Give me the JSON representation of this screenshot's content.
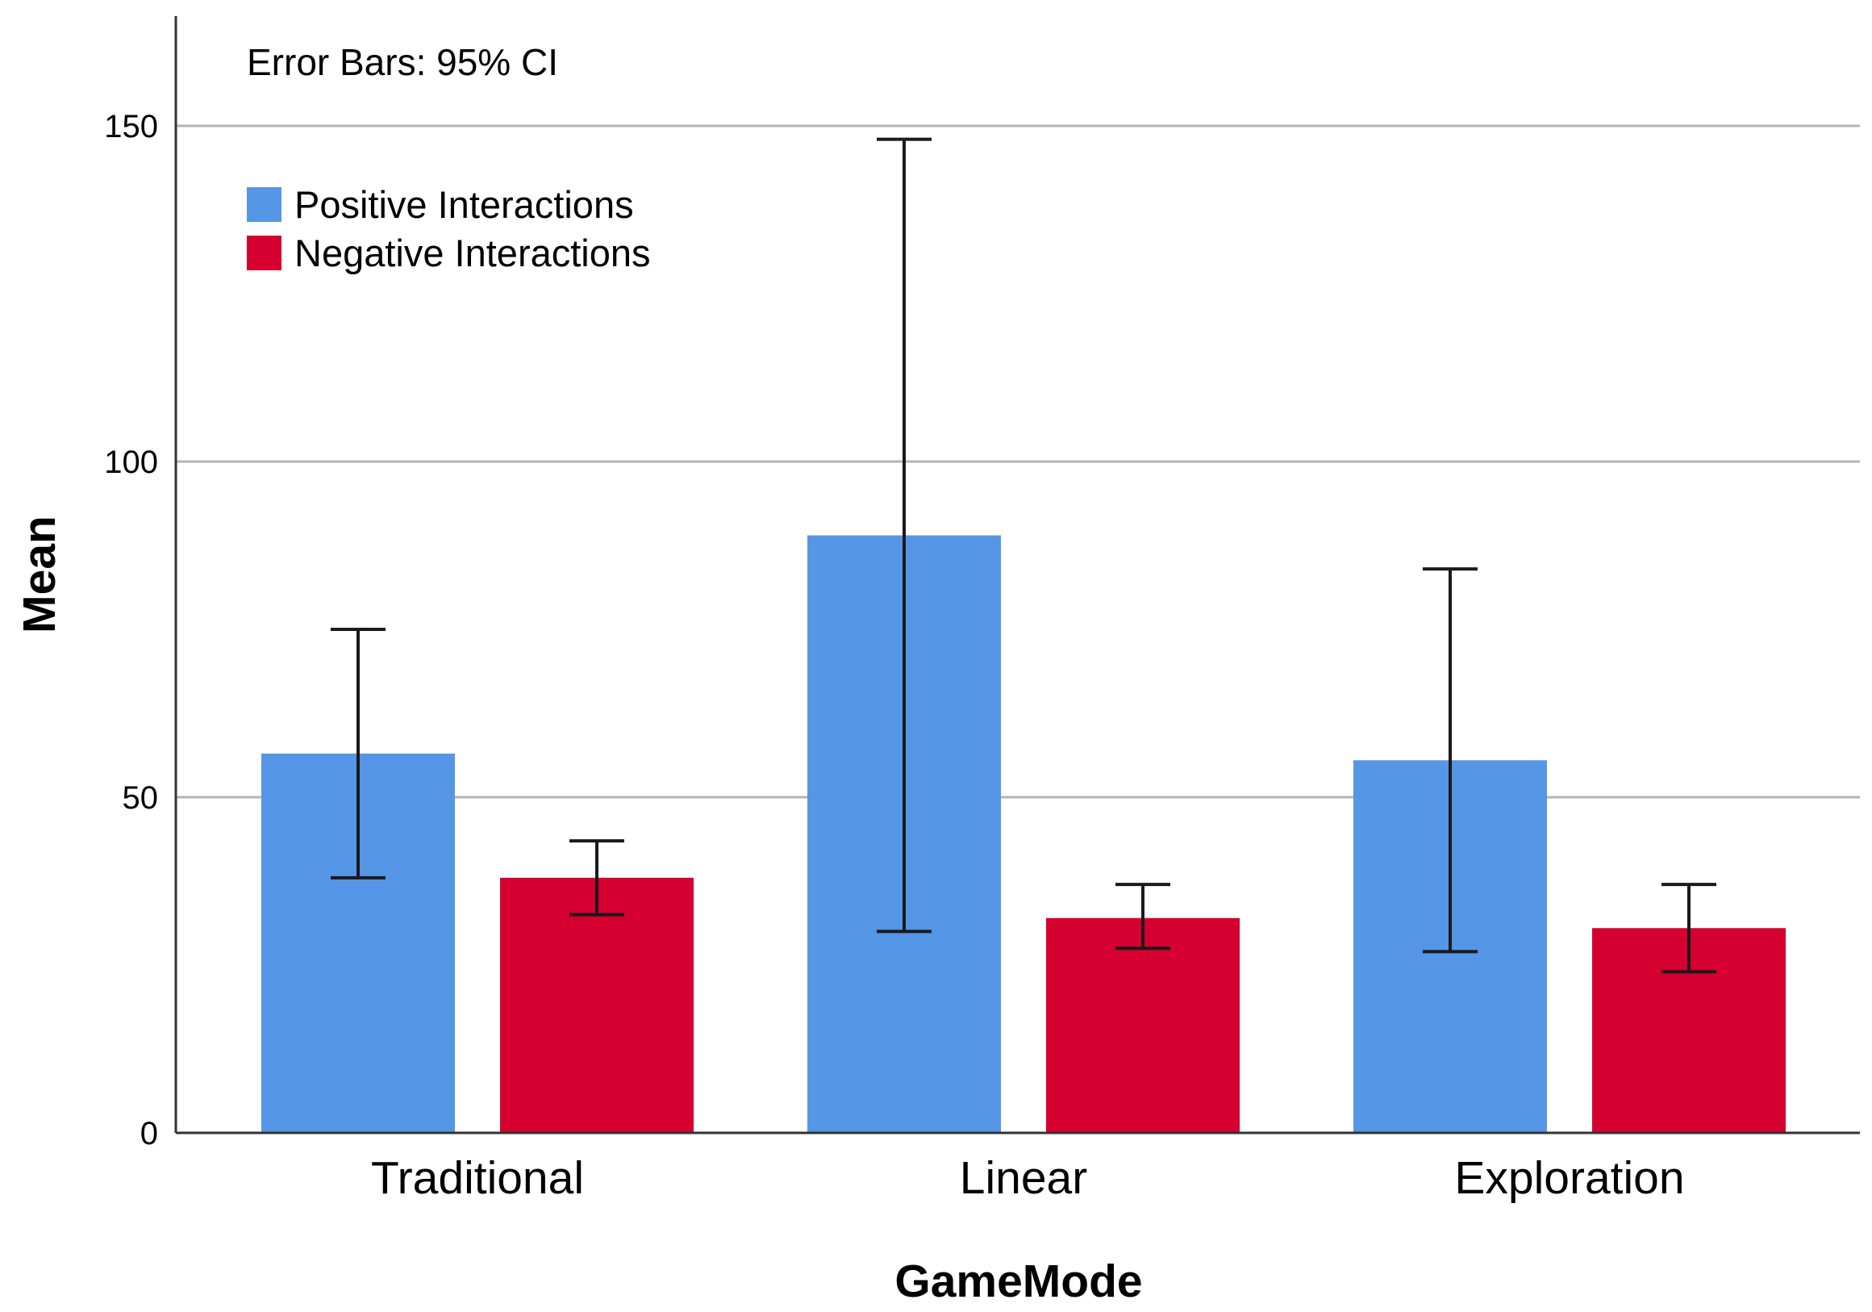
{
  "chart_data": {
    "type": "bar",
    "annotation": "Error Bars: 95% CI",
    "xlabel": "GameMode",
    "ylabel": "Mean",
    "categories": [
      "Traditional",
      "Linear",
      "Exploration"
    ],
    "ylim": [
      0,
      165
    ],
    "yticks": [
      0,
      50,
      100,
      150
    ],
    "grid": true,
    "legend_position": "top-left",
    "series": [
      {
        "name": "Positive Interactions",
        "color": "#5596E6",
        "values": [
          56.5,
          89,
          55.5
        ],
        "ci_lower": [
          38,
          30,
          27
        ],
        "ci_upper": [
          75,
          148,
          84
        ]
      },
      {
        "name": "Negative Interactions",
        "color": "#D5002F",
        "values": [
          38,
          32,
          30.5
        ],
        "ci_lower": [
          32.5,
          27.5,
          24
        ],
        "ci_upper": [
          43.5,
          37,
          37
        ]
      }
    ]
  }
}
